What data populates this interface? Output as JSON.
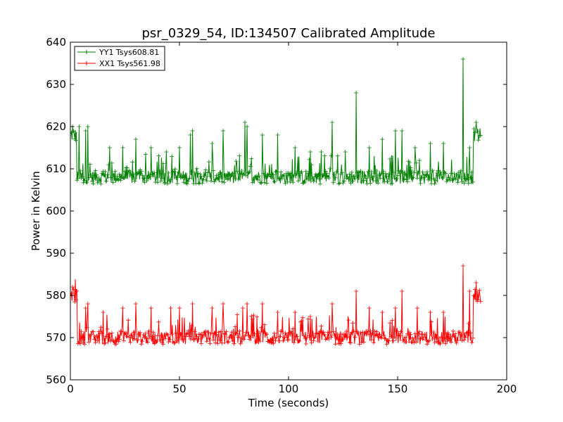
{
  "chart_data": {
    "type": "line",
    "title": "psr_0329_54, ID:134507 Calibrated Amplitude",
    "xlabel": "Time (seconds)",
    "ylabel": "Power in Kelvin",
    "xlim": [
      0,
      200
    ],
    "ylim": [
      560,
      640
    ],
    "xticks": [
      "0",
      "50",
      "100",
      "150",
      "200"
    ],
    "yticks": [
      "560",
      "570",
      "580",
      "590",
      "600",
      "610",
      "620",
      "630",
      "640"
    ],
    "grid": false,
    "legend_position": "top-left",
    "marker": "plus",
    "series": [
      {
        "name": "YY1 Tsys608.81",
        "color": "#008000",
        "baseline": 608,
        "x_range": [
          0,
          188
        ],
        "edge_levels": {
          "start": 618,
          "end": 618
        },
        "points": [
          {
            "x": 1,
            "y": 620
          },
          {
            "x": 4,
            "y": 620
          },
          {
            "x": 7,
            "y": 619
          },
          {
            "x": 8,
            "y": 620
          },
          {
            "x": 18,
            "y": 615
          },
          {
            "x": 24,
            "y": 615
          },
          {
            "x": 30,
            "y": 617
          },
          {
            "x": 37,
            "y": 615
          },
          {
            "x": 44,
            "y": 614
          },
          {
            "x": 50,
            "y": 615
          },
          {
            "x": 55,
            "y": 618
          },
          {
            "x": 56,
            "y": 619
          },
          {
            "x": 65,
            "y": 616
          },
          {
            "x": 70,
            "y": 619
          },
          {
            "x": 80,
            "y": 621
          },
          {
            "x": 81,
            "y": 620
          },
          {
            "x": 88,
            "y": 618
          },
          {
            "x": 95,
            "y": 618
          },
          {
            "x": 103,
            "y": 615
          },
          {
            "x": 110,
            "y": 614
          },
          {
            "x": 115,
            "y": 614
          },
          {
            "x": 120,
            "y": 621
          },
          {
            "x": 126,
            "y": 614
          },
          {
            "x": 131,
            "y": 628
          },
          {
            "x": 137,
            "y": 615
          },
          {
            "x": 143,
            "y": 617
          },
          {
            "x": 149,
            "y": 619
          },
          {
            "x": 152,
            "y": 619
          },
          {
            "x": 158,
            "y": 615
          },
          {
            "x": 165,
            "y": 616
          },
          {
            "x": 171,
            "y": 616
          },
          {
            "x": 180,
            "y": 636
          },
          {
            "x": 183,
            "y": 615
          },
          {
            "x": 186,
            "y": 621
          }
        ]
      },
      {
        "name": "XX1 Tsys561.98",
        "color": "#ff0000",
        "baseline": 570,
        "x_range": [
          0,
          188
        ],
        "edge_levels": {
          "start": 580,
          "end": 580
        },
        "points": [
          {
            "x": 1,
            "y": 582
          },
          {
            "x": 3,
            "y": 581
          },
          {
            "x": 7,
            "y": 577
          },
          {
            "x": 8,
            "y": 578
          },
          {
            "x": 15,
            "y": 576
          },
          {
            "x": 24,
            "y": 577
          },
          {
            "x": 30,
            "y": 578
          },
          {
            "x": 37,
            "y": 577
          },
          {
            "x": 46,
            "y": 577
          },
          {
            "x": 50,
            "y": 577
          },
          {
            "x": 56,
            "y": 578
          },
          {
            "x": 65,
            "y": 577
          },
          {
            "x": 70,
            "y": 578
          },
          {
            "x": 79,
            "y": 577
          },
          {
            "x": 81,
            "y": 578
          },
          {
            "x": 88,
            "y": 578
          },
          {
            "x": 95,
            "y": 576
          },
          {
            "x": 103,
            "y": 576
          },
          {
            "x": 110,
            "y": 575
          },
          {
            "x": 120,
            "y": 578
          },
          {
            "x": 131,
            "y": 581
          },
          {
            "x": 137,
            "y": 577
          },
          {
            "x": 143,
            "y": 576
          },
          {
            "x": 149,
            "y": 577
          },
          {
            "x": 152,
            "y": 581
          },
          {
            "x": 159,
            "y": 577
          },
          {
            "x": 165,
            "y": 576
          },
          {
            "x": 171,
            "y": 576
          },
          {
            "x": 180,
            "y": 587
          },
          {
            "x": 183,
            "y": 581
          },
          {
            "x": 186,
            "y": 583
          }
        ]
      }
    ]
  }
}
